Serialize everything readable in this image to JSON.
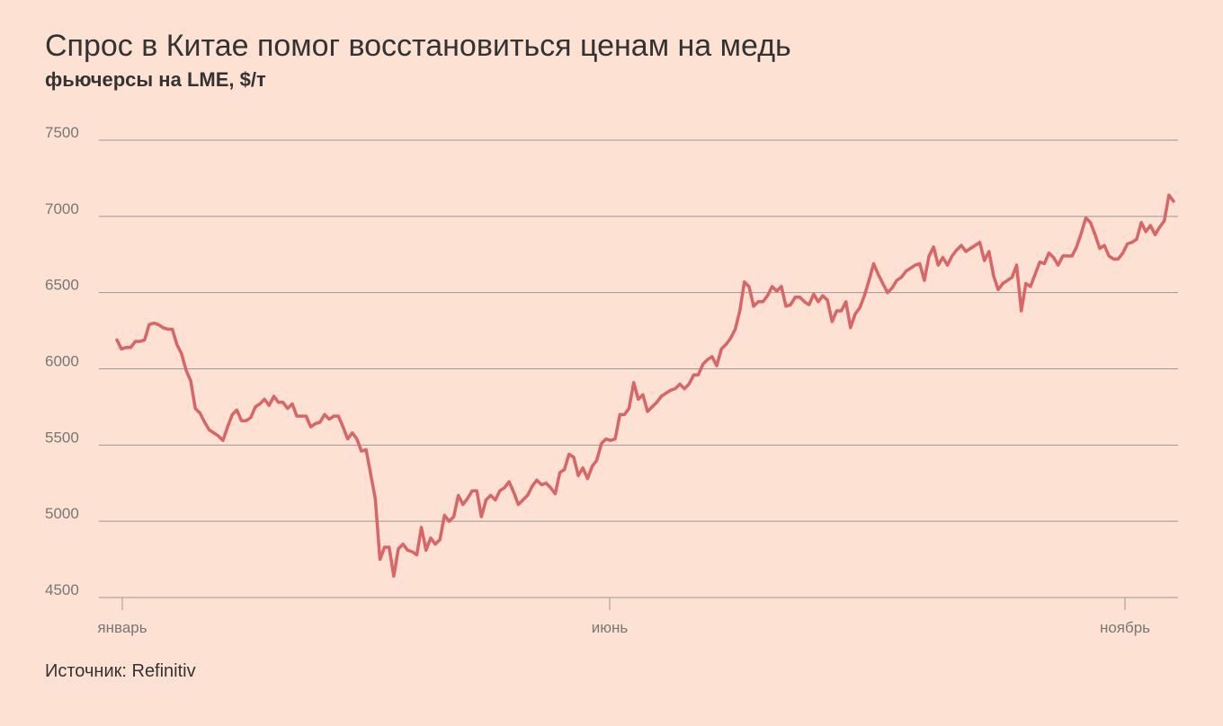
{
  "header": {
    "title": "Спрос в Китае помог восстановиться ценам на медь",
    "subtitle": "фьючерсы на LME, $/т"
  },
  "footer": {
    "source": "Источник: Refinitiv"
  },
  "chart_data": {
    "type": "line",
    "title": "Спрос в Китае помог восстановиться ценам на медь",
    "subtitle": "фьючерсы на LME, $/т",
    "xlabel": "",
    "ylabel": "",
    "ylim": [
      4500,
      7500
    ],
    "yticks": [
      4500,
      5000,
      5500,
      6000,
      6500,
      7000,
      7500
    ],
    "xtick_labels": [
      "январь",
      "июнь",
      "ноябрь"
    ],
    "grid": "horizontal",
    "line_color": "#db6466",
    "grid_color": "#999999",
    "series": [
      {
        "values": [
          6190,
          6130,
          6140,
          6140,
          6180,
          6180,
          6190,
          6290,
          6300,
          6290,
          6270,
          6260,
          6260,
          6160,
          6100,
          5990,
          5920,
          5740,
          5710,
          5650,
          5600,
          5580,
          5560,
          5530,
          5620,
          5700,
          5730,
          5660,
          5660,
          5680,
          5750,
          5770,
          5800,
          5760,
          5820,
          5780,
          5780,
          5740,
          5770,
          5690,
          5690,
          5690,
          5620,
          5640,
          5650,
          5700,
          5670,
          5690,
          5690,
          5620,
          5540,
          5580,
          5540,
          5460,
          5470,
          5310,
          5150,
          4750,
          4830,
          4830,
          4640,
          4820,
          4850,
          4810,
          4800,
          4780,
          4960,
          4810,
          4890,
          4850,
          4880,
          5040,
          5000,
          5030,
          5170,
          5110,
          5150,
          5200,
          5200,
          5030,
          5140,
          5170,
          5140,
          5200,
          5220,
          5260,
          5190,
          5110,
          5140,
          5170,
          5230,
          5270,
          5240,
          5250,
          5220,
          5180,
          5320,
          5340,
          5440,
          5420,
          5300,
          5350,
          5280,
          5360,
          5400,
          5510,
          5540,
          5530,
          5540,
          5700,
          5700,
          5740,
          5910,
          5800,
          5830,
          5720,
          5750,
          5780,
          5820,
          5840,
          5860,
          5870,
          5900,
          5870,
          5900,
          5960,
          5960,
          6030,
          6060,
          6080,
          6020,
          6130,
          6160,
          6200,
          6260,
          6380,
          6570,
          6540,
          6410,
          6440,
          6440,
          6480,
          6540,
          6510,
          6540,
          6410,
          6420,
          6470,
          6470,
          6440,
          6420,
          6490,
          6440,
          6480,
          6450,
          6310,
          6380,
          6380,
          6440,
          6270,
          6360,
          6400,
          6480,
          6580,
          6690,
          6620,
          6560,
          6500,
          6530,
          6580,
          6600,
          6640,
          6660,
          6680,
          6690,
          6580,
          6740,
          6800,
          6680,
          6730,
          6680,
          6740,
          6780,
          6810,
          6770,
          6790,
          6810,
          6830,
          6710,
          6770,
          6610,
          6520,
          6560,
          6580,
          6600,
          6680,
          6380,
          6560,
          6540,
          6620,
          6700,
          6690,
          6760,
          6730,
          6680,
          6740,
          6740,
          6740,
          6800,
          6890,
          6990,
          6960,
          6880,
          6790,
          6810,
          6740,
          6720,
          6720,
          6760,
          6820,
          6830,
          6850,
          6960,
          6900,
          6940,
          6880,
          6930,
          6970,
          7140,
          7100
        ]
      }
    ]
  }
}
